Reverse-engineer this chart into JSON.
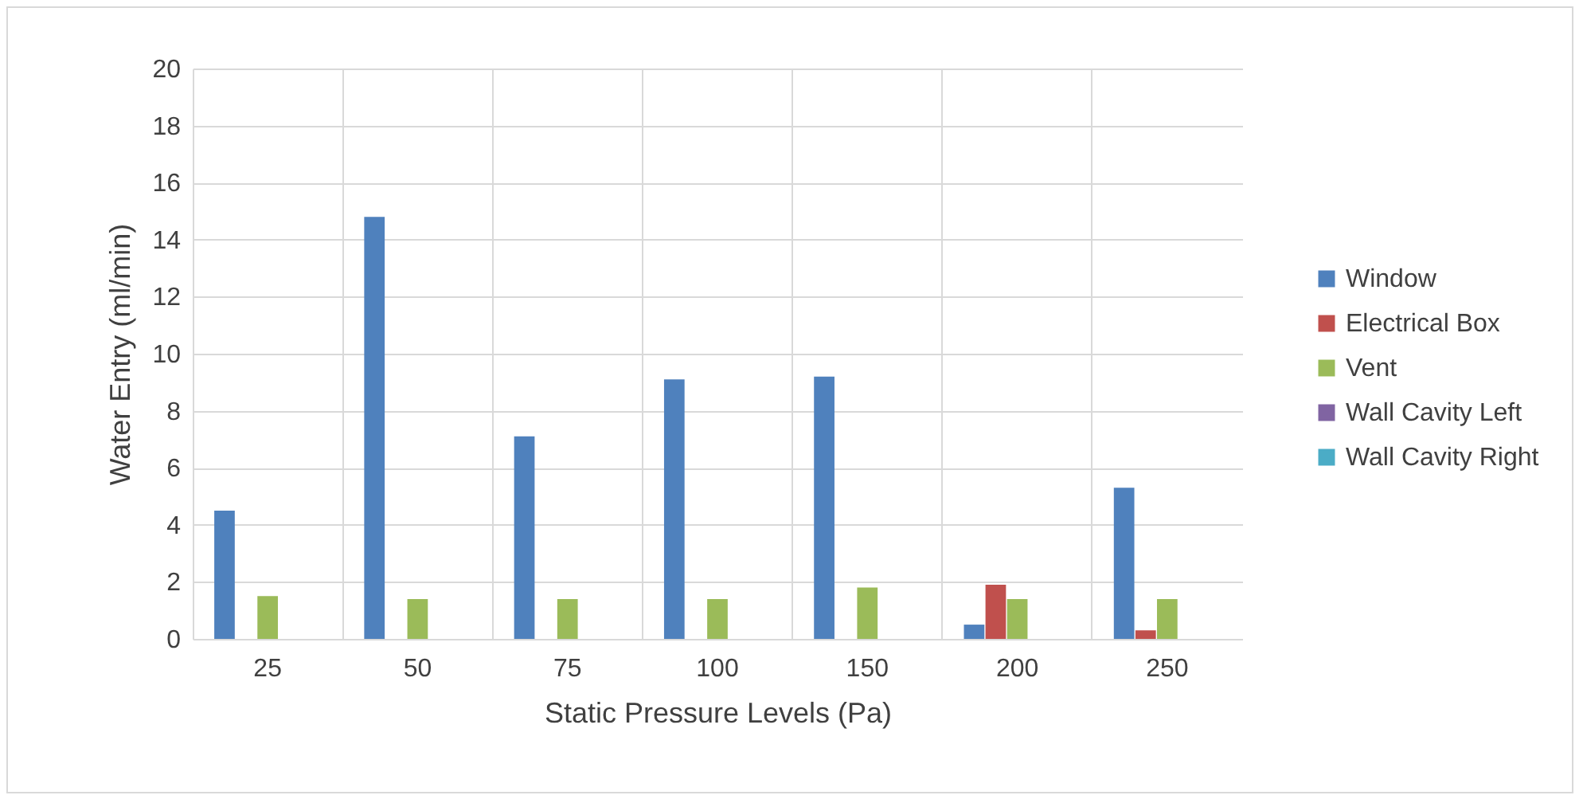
{
  "chart_data": {
    "type": "bar",
    "xlabel": "Static Pressure Levels (Pa)",
    "ylabel": "Water Entry (ml/min)",
    "categories": [
      "25",
      "50",
      "75",
      "100",
      "150",
      "200",
      "250"
    ],
    "series": [
      {
        "name": "Window",
        "color": "#4f81bd",
        "values": [
          4.5,
          14.8,
          7.1,
          9.1,
          9.2,
          0.5,
          5.3
        ]
      },
      {
        "name": "Electrical Box",
        "color": "#c0504d",
        "values": [
          0,
          0,
          0,
          0,
          0,
          1.9,
          0.3
        ]
      },
      {
        "name": "Vent",
        "color": "#9bbb59",
        "values": [
          1.5,
          1.4,
          1.4,
          1.4,
          1.8,
          1.4,
          1.4
        ]
      },
      {
        "name": "Wall Cavity Left",
        "color": "#8064a2",
        "values": [
          0,
          0,
          0,
          0,
          0,
          0,
          0
        ]
      },
      {
        "name": "Wall Cavity Right",
        "color": "#4bacc6",
        "values": [
          0,
          0,
          0,
          0,
          0,
          0,
          0
        ]
      }
    ],
    "ylim": [
      0,
      20
    ],
    "yticks": [
      0,
      2,
      4,
      6,
      8,
      10,
      12,
      14,
      16,
      18,
      20
    ],
    "grid": true,
    "legend": "right"
  }
}
